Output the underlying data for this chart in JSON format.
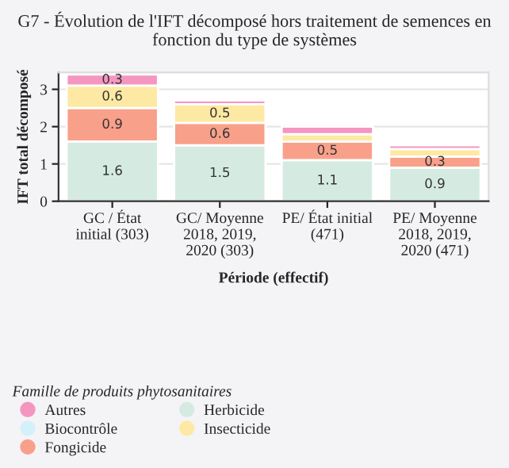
{
  "chart_data": {
    "type": "bar",
    "stacked": true,
    "title": "G7 - Évolution de l'IFT décomposé hors traitement de semences en fonction du type de systèmes",
    "xlabel": "Période (effectif)",
    "ylabel": "IFT total décomposé",
    "legend_title": "Famille de produits phytosanitaires",
    "categories": [
      "GC / État initial (303)",
      "GC/ Moyenne 2018, 2019, 2020 (303)",
      "PE/ État initial (471)",
      "PE/ Moyenne 2018, 2019, 2020 (471)"
    ],
    "series": [
      {
        "name": "Biocontrôle",
        "color": "#d4f0fb",
        "values": [
          0,
          0,
          0,
          0
        ]
      },
      {
        "name": "Herbicide",
        "color": "#d5ebe1",
        "values": [
          1.6,
          1.5,
          1.1,
          0.9
        ],
        "value_labels": [
          "1.6",
          "1.5",
          "1.1",
          "0.9"
        ]
      },
      {
        "name": "Fongicide",
        "color": "#f9a08a",
        "values": [
          0.9,
          0.6,
          0.5,
          0.3
        ],
        "value_labels": [
          "0.9",
          "0.6",
          "0.5",
          "0.3"
        ]
      },
      {
        "name": "Insecticide",
        "color": "#fde9a3",
        "values": [
          0.6,
          0.5,
          0.2,
          0.2
        ],
        "value_labels": [
          "0.6",
          "0.5",
          null,
          null
        ]
      },
      {
        "name": "Autres",
        "color": "#f596c0",
        "values": [
          0.3,
          0.1,
          0.2,
          0.1
        ],
        "value_labels": [
          "0.3",
          null,
          null,
          null
        ]
      }
    ],
    "ylim": [
      0,
      3.45
    ],
    "yticks": [
      0,
      1,
      2,
      3
    ],
    "grid": "y",
    "legend": "bottom left"
  }
}
